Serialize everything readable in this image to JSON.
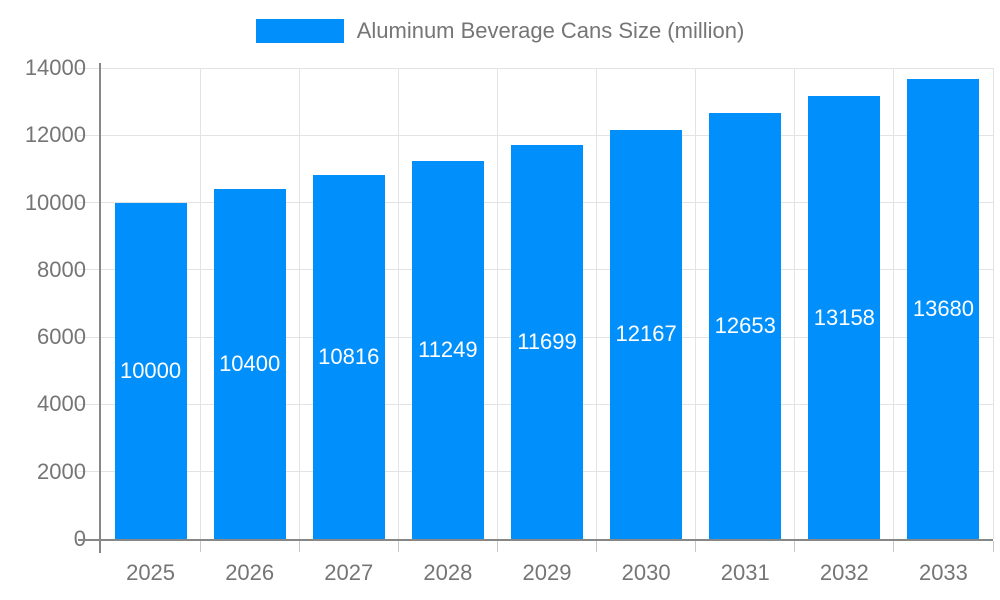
{
  "legend": {
    "position": "top"
  },
  "colors": {
    "bar": "#008FFB",
    "grid": "#e3e3e3",
    "axis": "#878787",
    "tick": "#c7c7c7",
    "label_text": "#757575",
    "value_text": "#ffffff",
    "background": "#ffffff"
  },
  "chart_data": {
    "type": "bar",
    "title": "",
    "categories": [
      "2025",
      "2026",
      "2027",
      "2028",
      "2029",
      "2030",
      "2031",
      "2032",
      "2033"
    ],
    "series": [
      {
        "name": "Aluminum Beverage Cans Size (million)",
        "values": [
          10000,
          10400,
          10816,
          11249,
          11699,
          12167,
          12653,
          13158,
          13680
        ]
      }
    ],
    "xlabel": "",
    "ylabel": "",
    "ylim": [
      0,
      14000
    ],
    "ytick_step": 2000,
    "ytick_labels": [
      "0",
      "2000",
      "4000",
      "6000",
      "8000",
      "10000",
      "12000",
      "14000"
    ],
    "grid": true,
    "legend_position": "top",
    "value_labels": "inside-center"
  }
}
